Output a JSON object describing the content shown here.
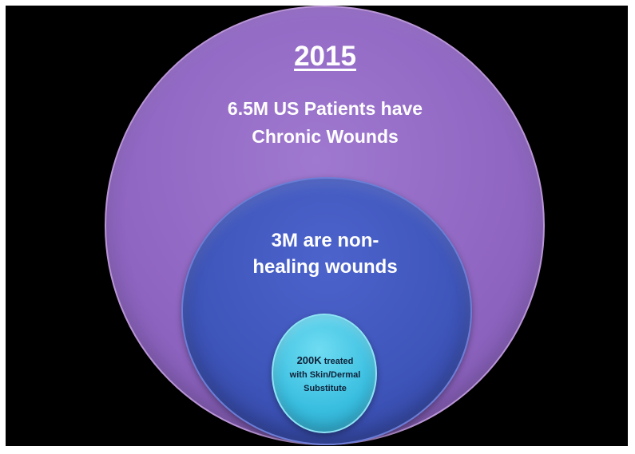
{
  "diagram": {
    "title": "2015",
    "outer": {
      "lines": [
        "6.5M US Patients have",
        "Chronic Wounds"
      ],
      "color": "#9370C8"
    },
    "middle": {
      "lines": [
        "3M are non-",
        "healing wounds"
      ],
      "color": "#4459C0"
    },
    "inner": {
      "line1_emphasis": "200K",
      "line1_rest": " treated",
      "line2": "with Skin/Dermal",
      "line3": "Substitute",
      "color": "#3CC3E3"
    },
    "background_color": "#000000"
  }
}
